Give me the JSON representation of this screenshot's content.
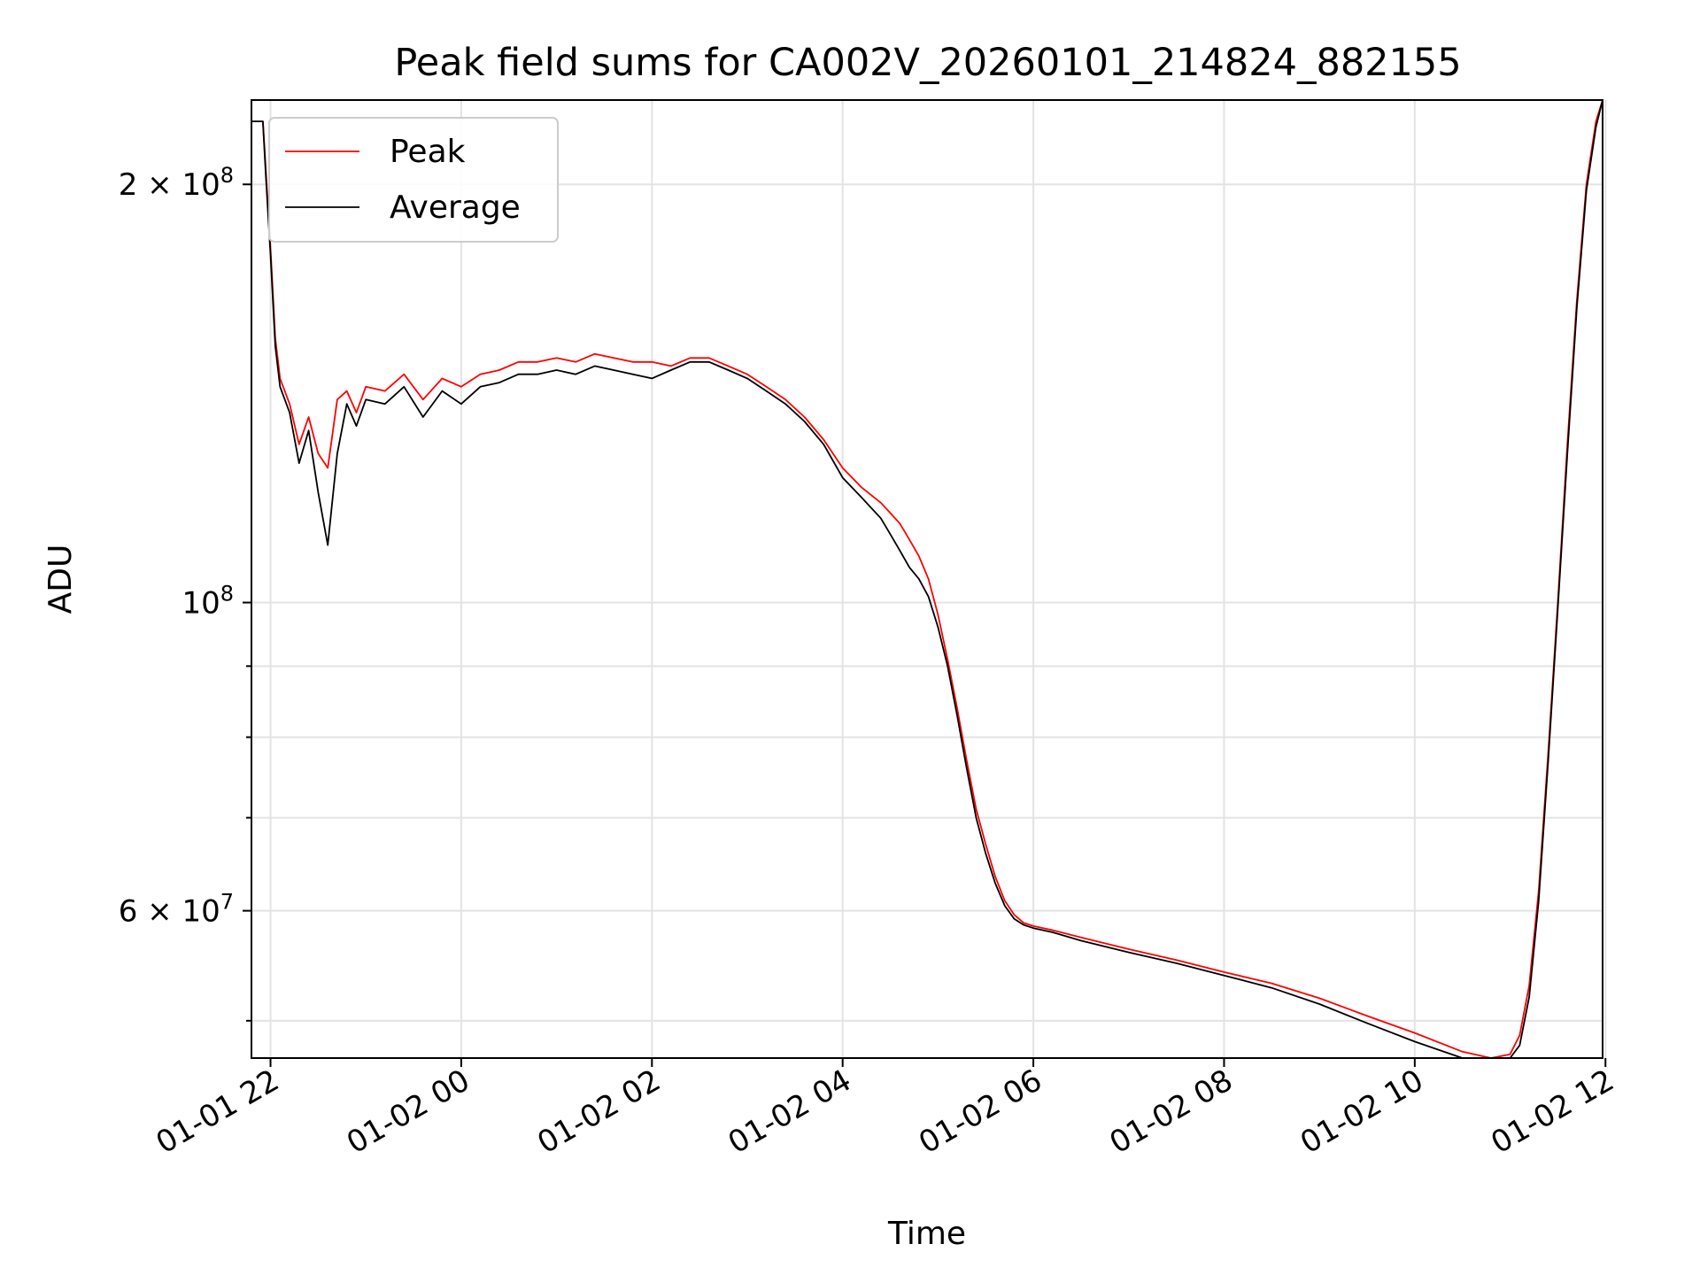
{
  "chart_data": {
    "type": "line",
    "title": "Peak field sums for CA002V_20260101_214824_882155",
    "xlabel": "Time",
    "ylabel": "ADU",
    "x_unit": "hours since 01-01 00:00",
    "xlim": [
      21.8,
      35.97
    ],
    "ylim": [
      47000000,
      230000000
    ],
    "y_scale": "log",
    "grid": true,
    "legend_position": "top-left",
    "x_ticks": [
      {
        "value": 22,
        "label": "01-01 22"
      },
      {
        "value": 24,
        "label": "01-02 00"
      },
      {
        "value": 26,
        "label": "01-02 02"
      },
      {
        "value": 28,
        "label": "01-02 04"
      },
      {
        "value": 30,
        "label": "01-02 06"
      },
      {
        "value": 32,
        "label": "01-02 08"
      },
      {
        "value": 34,
        "label": "01-02 10"
      },
      {
        "value": 36,
        "label": "01-02 12"
      }
    ],
    "y_major_ticks": [
      {
        "value": 60000000,
        "base": "6 × 10",
        "exp": "7"
      },
      {
        "value": 100000000,
        "base": "10",
        "exp": "8"
      },
      {
        "value": 200000000,
        "base": "2 × 10",
        "exp": "8"
      }
    ],
    "y_minor_ticks": [
      50000000,
      70000000,
      80000000,
      90000000
    ],
    "series": [
      {
        "name": "Peak",
        "color": "#ff0000",
        "x": [
          21.8,
          21.92,
          21.95,
          22.0,
          22.05,
          22.1,
          22.2,
          22.3,
          22.4,
          22.5,
          22.6,
          22.7,
          22.8,
          22.9,
          23.0,
          23.2,
          23.4,
          23.6,
          23.8,
          24.0,
          24.2,
          24.4,
          24.6,
          24.8,
          25.0,
          25.2,
          25.4,
          25.6,
          25.8,
          26.0,
          26.2,
          26.4,
          26.6,
          26.8,
          27.0,
          27.2,
          27.4,
          27.6,
          27.8,
          28.0,
          28.2,
          28.4,
          28.5,
          28.6,
          28.7,
          28.8,
          28.9,
          29.0,
          29.1,
          29.2,
          29.3,
          29.4,
          29.5,
          29.6,
          29.7,
          29.8,
          29.9,
          30.0,
          30.2,
          30.5,
          31.0,
          31.5,
          32.0,
          32.5,
          33.0,
          33.5,
          34.0,
          34.5,
          34.8,
          35.0,
          35.1,
          35.2,
          35.3,
          35.4,
          35.5,
          35.6,
          35.7,
          35.8,
          35.9,
          35.97
        ],
        "values": [
          222000000,
          222000000,
          205000000,
          180000000,
          155000000,
          145000000,
          139000000,
          130000000,
          136000000,
          128000000,
          125000000,
          140000000,
          142000000,
          137000000,
          143000000,
          142000000,
          146000000,
          140000000,
          145000000,
          143000000,
          146000000,
          147000000,
          149000000,
          149000000,
          150000000,
          149000000,
          151000000,
          150000000,
          149000000,
          149000000,
          148000000,
          150000000,
          150000000,
          148000000,
          146000000,
          143000000,
          140000000,
          136000000,
          131000000,
          125000000,
          121000000,
          118000000,
          116000000,
          114000000,
          111000000,
          108000000,
          104000000,
          98000000,
          91000000,
          84000000,
          77000000,
          71000000,
          67000000,
          63500000,
          61000000,
          59600000,
          58800000,
          58500000,
          58100000,
          57400000,
          56300000,
          55300000,
          54200000,
          53200000,
          51900000,
          50400000,
          49000000,
          47500000,
          47000000,
          47300000,
          48800000,
          53000000,
          62000000,
          78000000,
          100000000,
          130000000,
          165000000,
          200000000,
          222000000,
          230000000
        ]
      },
      {
        "name": "Average",
        "color": "#000000",
        "x": [
          21.8,
          21.92,
          21.95,
          22.0,
          22.05,
          22.1,
          22.2,
          22.3,
          22.4,
          22.5,
          22.6,
          22.7,
          22.8,
          22.9,
          23.0,
          23.2,
          23.4,
          23.6,
          23.8,
          24.0,
          24.2,
          24.4,
          24.6,
          24.8,
          25.0,
          25.2,
          25.4,
          25.6,
          25.8,
          26.0,
          26.2,
          26.4,
          26.6,
          26.8,
          27.0,
          27.2,
          27.4,
          27.6,
          27.8,
          28.0,
          28.2,
          28.4,
          28.5,
          28.6,
          28.7,
          28.8,
          28.9,
          29.0,
          29.1,
          29.2,
          29.3,
          29.4,
          29.5,
          29.6,
          29.7,
          29.8,
          29.9,
          30.0,
          30.2,
          30.5,
          31.0,
          31.5,
          32.0,
          32.5,
          33.0,
          33.5,
          34.0,
          34.5,
          34.8,
          35.0,
          35.1,
          35.2,
          35.3,
          35.4,
          35.5,
          35.6,
          35.7,
          35.8,
          35.9,
          35.97
        ],
        "values": [
          222000000,
          222000000,
          203000000,
          178000000,
          153000000,
          143000000,
          137000000,
          126000000,
          133000000,
          120000000,
          110000000,
          128000000,
          139000000,
          134000000,
          140000000,
          139000000,
          143000000,
          136000000,
          142000000,
          139000000,
          143000000,
          144000000,
          146000000,
          146000000,
          147000000,
          146000000,
          148000000,
          147000000,
          146000000,
          145000000,
          147000000,
          149000000,
          149000000,
          147000000,
          145000000,
          142000000,
          139000000,
          135000000,
          130000000,
          123000000,
          119000000,
          115000000,
          112000000,
          109000000,
          106000000,
          104000000,
          101000000,
          96000000,
          90000000,
          83000000,
          76000000,
          70000000,
          66000000,
          62800000,
          60500000,
          59200000,
          58600000,
          58300000,
          57900000,
          57100000,
          56000000,
          55000000,
          53900000,
          52800000,
          51400000,
          49800000,
          48300000,
          46800000,
          46200000,
          46600000,
          48000000,
          52000000,
          61000000,
          77000000,
          99000000,
          128000000,
          163000000,
          198000000,
          220000000,
          230000000
        ]
      }
    ]
  }
}
